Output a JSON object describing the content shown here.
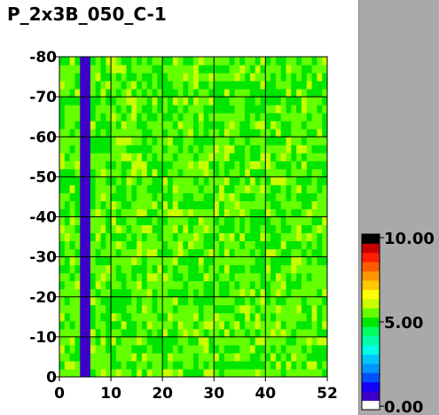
{
  "chart_data": {
    "type": "heatmap",
    "title": "P_2x3B_050_C-1",
    "x_ticks": [
      0,
      10,
      20,
      30,
      40,
      52
    ],
    "y_ticks": [
      0,
      10,
      20,
      30,
      40,
      50,
      60,
      70,
      80
    ],
    "y_tick_labels": [
      "0",
      "-10",
      "-20",
      "-30",
      "-40",
      "-50",
      "-60",
      "-70",
      "-80"
    ],
    "xlim": [
      0,
      52
    ],
    "ylim": [
      0,
      80
    ],
    "grid": true,
    "field": {
      "base_value": 5.5,
      "noise_range": [
        4.8,
        6.0
      ],
      "low_column": {
        "x_range": [
          4,
          6
        ],
        "value": 0.3
      }
    },
    "colorbar": {
      "min": 0,
      "max": 10,
      "labels": [
        "10.00",
        "5.00",
        "0.00"
      ],
      "colors": [
        "#ffffff",
        "#3c00c8",
        "#1400ff",
        "#0050ff",
        "#0096ff",
        "#00c8ff",
        "#00ffe6",
        "#00ffaa",
        "#00ff64",
        "#00e600",
        "#64ff00",
        "#c8ff00",
        "#ffff00",
        "#ffc800",
        "#ff9600",
        "#ff5a00",
        "#ff1e00",
        "#c80000",
        "#000000"
      ]
    }
  }
}
